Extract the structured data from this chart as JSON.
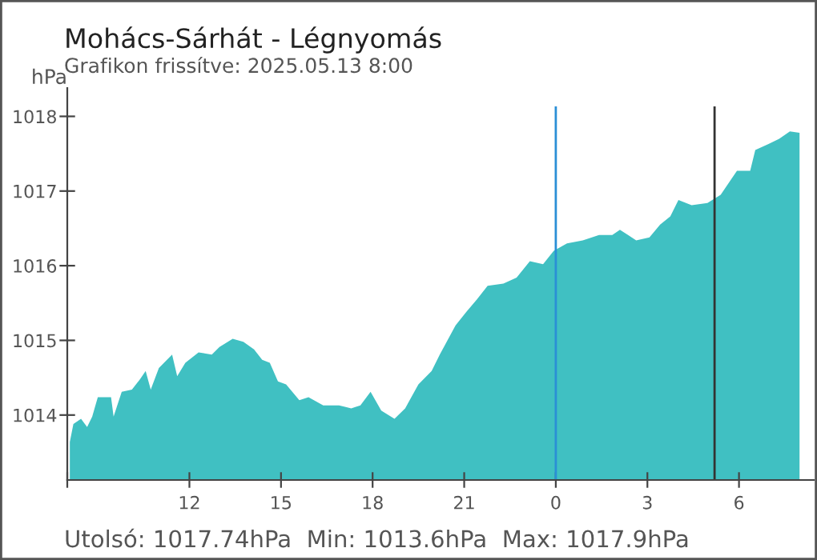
{
  "chart_data": {
    "type": "area",
    "title": "Mohács-Sárhát - Légnyomás",
    "subtitle": "Grafikon frissítve: 2025.05.13 8:00",
    "ylabel": "hPa",
    "x": [
      "2025-05-12T08:05",
      "2025-05-12T08:12",
      "2025-05-12T08:27",
      "2025-05-12T08:39",
      "2025-05-12T08:49",
      "2025-05-12T09:00",
      "2025-05-12T09:26",
      "2025-05-12T09:31",
      "2025-05-12T09:47",
      "2025-05-12T10:07",
      "2025-05-12T10:23",
      "2025-05-12T10:34",
      "2025-05-12T10:44",
      "2025-05-12T11:00",
      "2025-05-12T11:26",
      "2025-05-12T11:36",
      "2025-05-12T11:52",
      "2025-05-12T12:18",
      "2025-05-12T12:44",
      "2025-05-12T12:59",
      "2025-05-12T13:25",
      "2025-05-12T13:46",
      "2025-05-12T14:07",
      "2025-05-12T14:23",
      "2025-05-12T14:38",
      "2025-05-12T14:54",
      "2025-05-12T15:10",
      "2025-05-12T15:36",
      "2025-05-12T15:54",
      "2025-05-12T16:23",
      "2025-05-12T16:54",
      "2025-05-12T17:18",
      "2025-05-12T17:36",
      "2025-05-12T17:56",
      "2025-05-12T18:17",
      "2025-05-12T18:43",
      "2025-05-12T19:04",
      "2025-05-12T19:30",
      "2025-05-12T19:56",
      "2025-05-12T20:12",
      "2025-05-12T20:43",
      "2025-05-12T21:04",
      "2025-05-12T21:25",
      "2025-05-12T21:46",
      "2025-05-12T22:17",
      "2025-05-12T22:43",
      "2025-05-12T23:09",
      "2025-05-12T23:35",
      "2025-05-12T23:56",
      "2025-05-13T00:22",
      "2025-05-13T00:53",
      "2025-05-13T01:25",
      "2025-05-13T01:51",
      "2025-05-13T02:06",
      "2025-05-13T02:22",
      "2025-05-13T02:38",
      "2025-05-13T03:04",
      "2025-05-13T03:25",
      "2025-05-13T03:45",
      "2025-05-13T04:01",
      "2025-05-13T04:27",
      "2025-05-13T04:58",
      "2025-05-13T05:24",
      "2025-05-13T05:56",
      "2025-05-13T06:22",
      "2025-05-13T06:32",
      "2025-05-13T06:58",
      "2025-05-13T07:19",
      "2025-05-13T07:40",
      "2025-05-13T07:59"
    ],
    "series": [
      {
        "color": "#40c0c2",
        "values": [
          1013.64,
          1013.88,
          1013.95,
          1013.84,
          1013.98,
          1014.24,
          1014.24,
          1013.98,
          1014.31,
          1014.34,
          1014.48,
          1014.59,
          1014.34,
          1014.63,
          1014.81,
          1014.52,
          1014.7,
          1014.84,
          1014.81,
          1014.91,
          1015.02,
          1014.98,
          1014.88,
          1014.74,
          1014.7,
          1014.45,
          1014.41,
          1014.2,
          1014.24,
          1014.13,
          1014.13,
          1014.09,
          1014.13,
          1014.31,
          1014.06,
          1013.95,
          1014.09,
          1014.41,
          1014.59,
          1014.81,
          1015.2,
          1015.38,
          1015.55,
          1015.73,
          1015.76,
          1015.84,
          1016.06,
          1016.02,
          1016.2,
          1016.3,
          1016.34,
          1016.41,
          1016.41,
          1016.48,
          1016.41,
          1016.34,
          1016.38,
          1016.55,
          1016.66,
          1016.88,
          1016.81,
          1016.84,
          1016.95,
          1017.27,
          1017.27,
          1017.55,
          1017.63,
          1017.7,
          1017.8,
          1017.78
        ]
      }
    ],
    "xlim": [
      "2025-05-12T08:00",
      "2025-05-13T08:27"
    ],
    "ylim": [
      1013.13,
      1018.38
    ],
    "xticks": [
      {
        "value": "2025-05-12T08:00",
        "label": null
      },
      {
        "value": "2025-05-12T12:00",
        "label": "12"
      },
      {
        "value": "2025-05-12T15:00",
        "label": "15"
      },
      {
        "value": "2025-05-12T18:00",
        "label": "18"
      },
      {
        "value": "2025-05-12T21:00",
        "label": "21"
      },
      {
        "value": "2025-05-13T00:00",
        "label": "0"
      },
      {
        "value": "2025-05-13T03:00",
        "label": "3"
      },
      {
        "value": "2025-05-13T06:00",
        "label": "6"
      }
    ],
    "yticks": [
      1014,
      1015,
      1016,
      1017,
      1018
    ],
    "ref_lines": [
      {
        "axis": "x",
        "value": "2025-05-13T00:00",
        "color": "#2a8fd6"
      },
      {
        "axis": "x",
        "value": "2025-05-13T05:12",
        "color": "#333333"
      }
    ],
    "grid": false,
    "legend": false,
    "annotations": [
      "Utolsó: 1017.74hPa  Min: 1013.6hPa  Max: 1017.9hPa"
    ]
  }
}
